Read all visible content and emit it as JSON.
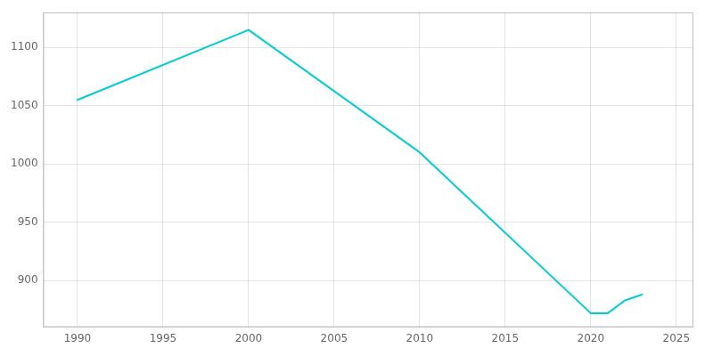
{
  "chart_data": {
    "type": "line",
    "x": [
      1990,
      2000,
      2010,
      2020,
      2021,
      2022,
      2023
    ],
    "values": [
      1055,
      1115,
      1010,
      872,
      872,
      883,
      888
    ],
    "color": "#00CED1",
    "xlim": [
      1988,
      2026
    ],
    "ylim": [
      860,
      1130
    ],
    "xticks": [
      1990,
      1995,
      2000,
      2005,
      2010,
      2015,
      2020,
      2025
    ],
    "yticks": [
      900,
      950,
      1000,
      1050,
      1100
    ],
    "grid": true
  }
}
